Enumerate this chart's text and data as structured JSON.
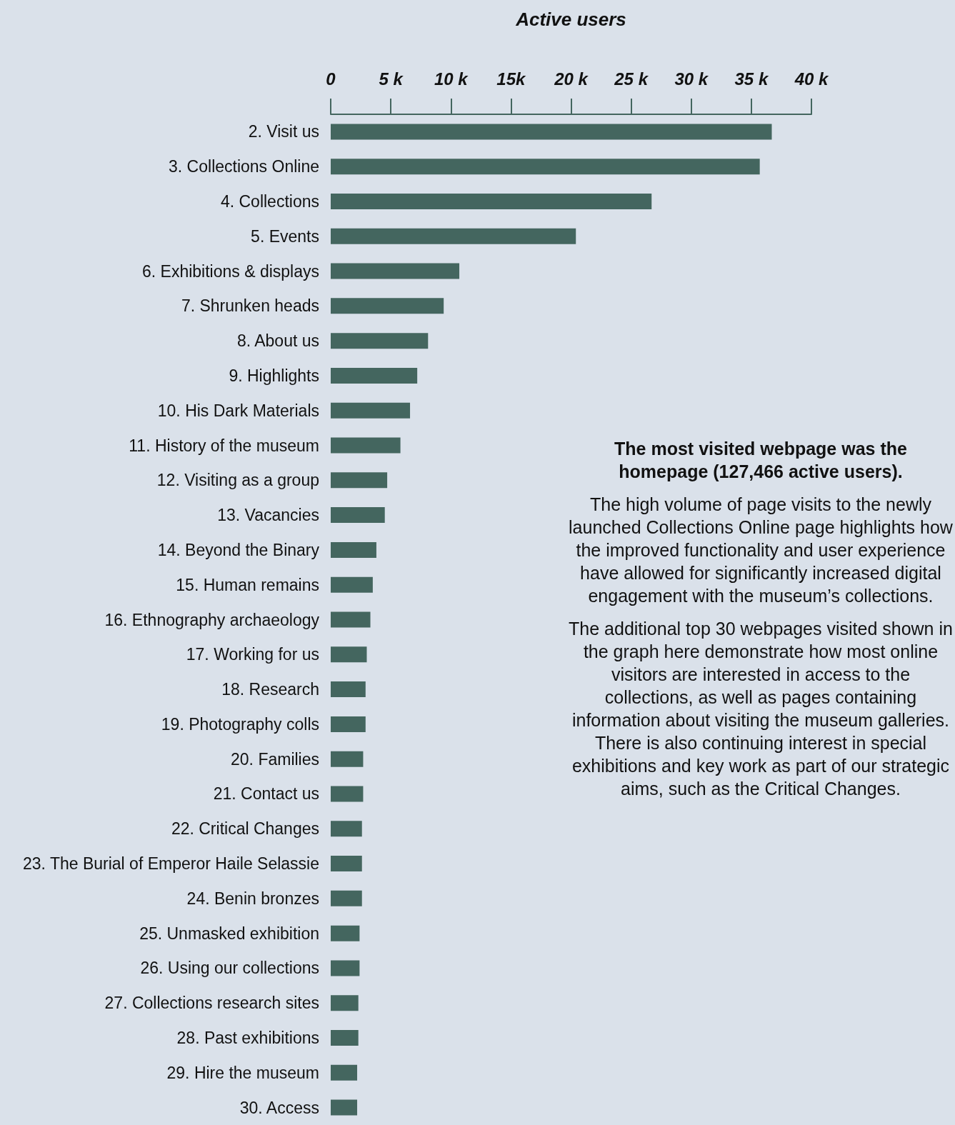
{
  "chart_data": {
    "type": "bar",
    "orientation": "horizontal",
    "xlabel": "Active users",
    "color": "#44665f",
    "categories": [
      "2. Visit us",
      "3. Collections Online",
      "4. Collections",
      "5. Events",
      "6. Exhibitions & displays",
      "7. Shrunken heads",
      "8. About us",
      "9. Highlights",
      "10. His Dark Materials",
      "11. History of the museum",
      "12. Visiting as a group",
      "13. Vacancies",
      "14. Beyond the Binary",
      "15. Human remains",
      "16. Ethnography archaeology",
      "17. Working for us",
      "18. Research",
      "19. Photography colls",
      "20. Families",
      "21. Contact us",
      "22. Critical Changes",
      "23. The Burial of Emperor Haile Selassie",
      "24. Benin bronzes",
      "25. Unmasked exhibition",
      "26. Using our collections",
      "27. Collections research sites",
      "28. Past exhibitions",
      "29. Hire the museum",
      "30. Access"
    ],
    "values": [
      36700,
      35700,
      26700,
      20400,
      10700,
      9400,
      8100,
      7200,
      6600,
      5800,
      4700,
      4500,
      3800,
      3500,
      3300,
      3000,
      2900,
      2900,
      2700,
      2700,
      2600,
      2600,
      2600,
      2400,
      2400,
      2300,
      2300,
      2200,
      2200
    ],
    "xlim": [
      0,
      40000
    ],
    "xticks": [
      {
        "value": 0,
        "label": "0"
      },
      {
        "value": 5000,
        "label": "5 k"
      },
      {
        "value": 10000,
        "label": "10 k"
      },
      {
        "value": 15000,
        "label": "15k"
      },
      {
        "value": 20000,
        "label": "20 k"
      },
      {
        "value": 25000,
        "label": "25 k"
      },
      {
        "value": 30000,
        "label": "30 k"
      },
      {
        "value": 35000,
        "label": "35 k"
      },
      {
        "value": 40000,
        "label": "40 k"
      }
    ],
    "annotations": [
      "The most visited webpage was the homepage (127,466 active users).",
      "The high volume of page visits to the newly launched Collections Online page highlights how the improved functionality and user experience have allowed for significantly increased digital engagement with the museum’s collections.",
      "The additional top 30 webpages visited shown in the graph here demonstrate how most online visitors are interested in access to the collections, as well as pages containing information about visiting the museum galleries. There is also continuing interest in special exhibitions and key work as part of our strategic aims, such as the Critical Changes."
    ]
  }
}
